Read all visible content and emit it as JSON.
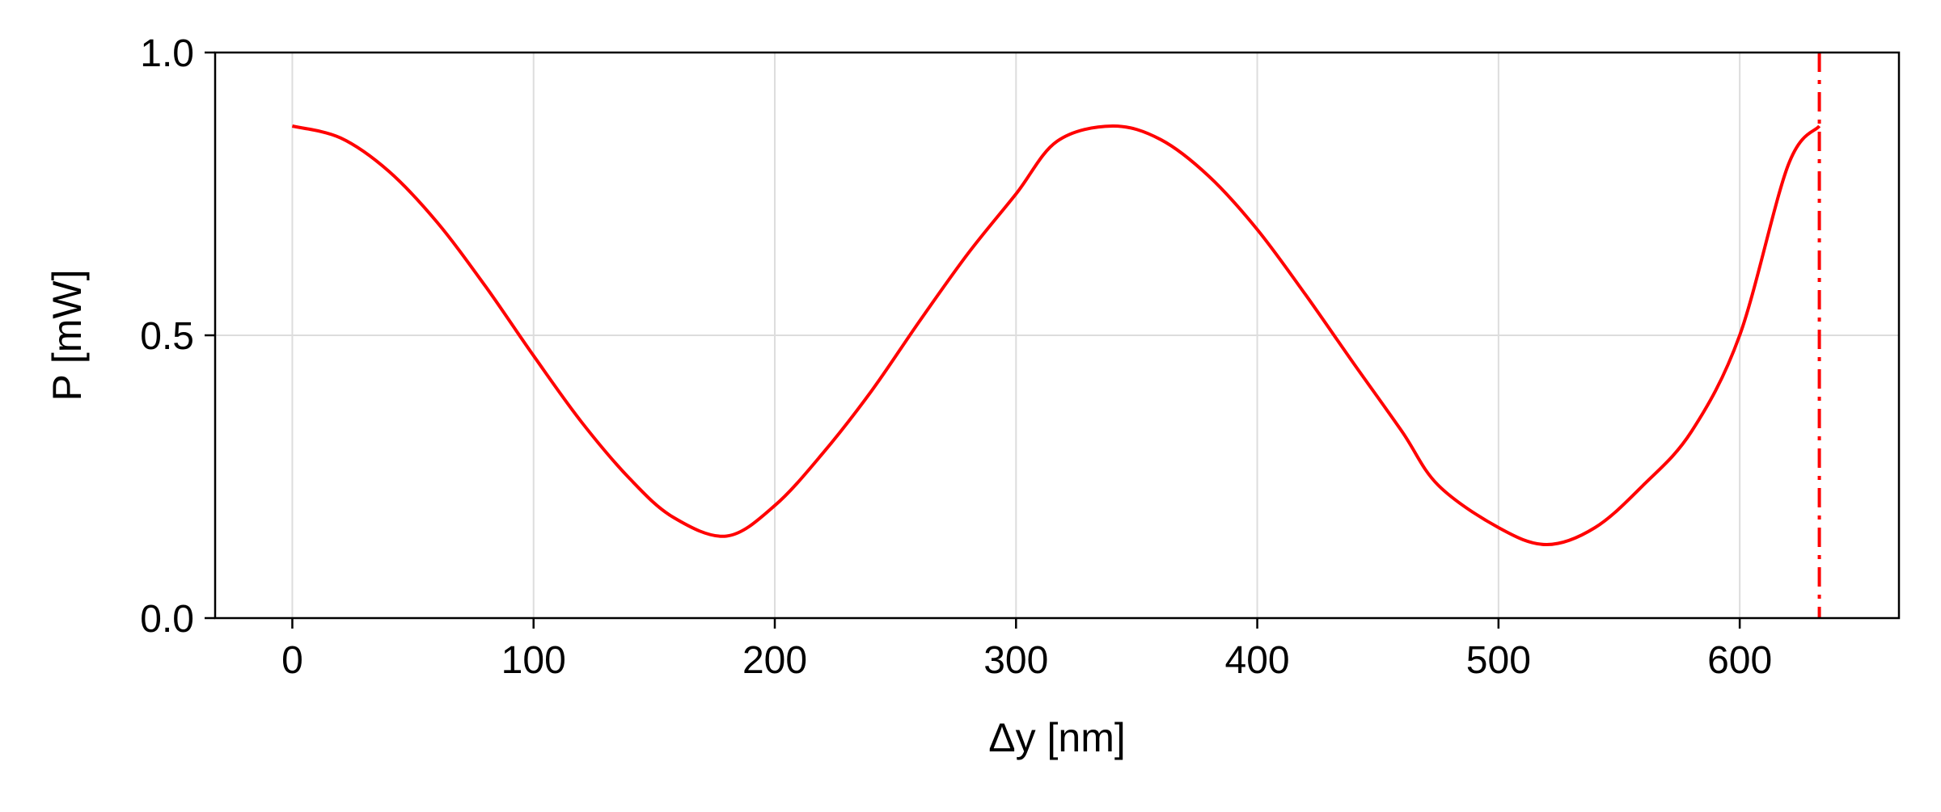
{
  "chart_data": {
    "type": "line",
    "title": "",
    "xlabel": "Δy [nm]",
    "ylabel": "P [mW]",
    "xlim": [
      -32,
      666
    ],
    "ylim": [
      0.0,
      1.0
    ],
    "xticks": [
      0,
      100,
      200,
      300,
      400,
      500,
      600
    ],
    "xtick_labels": [
      "0",
      "100",
      "200",
      "300",
      "400",
      "500",
      "600"
    ],
    "yticks": [
      0.0,
      0.5,
      1.0
    ],
    "ytick_labels": [
      "0.0",
      "0.5",
      "1.0"
    ],
    "grid": true,
    "legend": "none",
    "series": [
      {
        "color": "#ff0000",
        "style": "solid",
        "x": [
          0,
          20,
          40,
          60,
          80,
          100,
          120,
          140,
          158,
          180,
          200,
          220,
          240,
          260,
          280,
          300,
          317,
          340,
          360,
          380,
          400,
          420,
          440,
          460,
          475,
          500,
          520,
          540,
          560,
          580,
          600,
          620,
          633
        ],
        "y": [
          0.87,
          0.849,
          0.79,
          0.7,
          0.587,
          0.464,
          0.346,
          0.246,
          0.178,
          0.145,
          0.199,
          0.292,
          0.401,
          0.525,
          0.644,
          0.75,
          0.843,
          0.87,
          0.846,
          0.781,
          0.687,
          0.572,
          0.45,
          0.33,
          0.235,
          0.16,
          0.13,
          0.16,
          0.235,
          0.33,
          0.5,
          0.8,
          0.87
        ]
      }
    ],
    "annotations": [
      {
        "type": "vline",
        "x": 633,
        "color": "#ff0000",
        "style": "dashdot"
      }
    ]
  }
}
